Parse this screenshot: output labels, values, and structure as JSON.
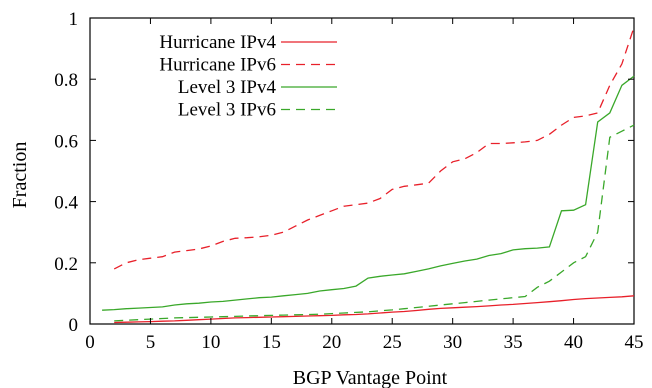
{
  "chart_data": {
    "type": "line",
    "xlabel": "BGP Vantage Point",
    "ylabel": "Fraction",
    "xlim": [
      0,
      45
    ],
    "ylim": [
      0,
      1
    ],
    "x_ticks": [
      0,
      5,
      10,
      15,
      20,
      25,
      30,
      35,
      40,
      45
    ],
    "y_ticks": [
      0,
      0.2,
      0.4,
      0.6,
      0.8,
      1
    ],
    "y_tick_labels": [
      "0",
      "0.2",
      "0.4",
      "0.6",
      "0.8",
      "1"
    ],
    "grid": false,
    "legend_position": "top-left",
    "series": [
      {
        "name": "Hurricane IPv4",
        "color": "#e8202a",
        "dash": "solid",
        "x": [
          2,
          3,
          4,
          5,
          6,
          7,
          8,
          9,
          10,
          11,
          12,
          13,
          14,
          15,
          16,
          17,
          18,
          19,
          20,
          21,
          22,
          23,
          24,
          25,
          26,
          27,
          28,
          29,
          30,
          31,
          32,
          33,
          34,
          35,
          36,
          37,
          38,
          39,
          40,
          41,
          42,
          43,
          44,
          45
        ],
        "values": [
          0.005,
          0.006,
          0.007,
          0.008,
          0.009,
          0.01,
          0.012,
          0.014,
          0.016,
          0.018,
          0.02,
          0.021,
          0.022,
          0.023,
          0.024,
          0.025,
          0.026,
          0.027,
          0.028,
          0.03,
          0.031,
          0.033,
          0.036,
          0.039,
          0.041,
          0.044,
          0.048,
          0.051,
          0.053,
          0.055,
          0.057,
          0.059,
          0.062,
          0.064,
          0.067,
          0.07,
          0.073,
          0.076,
          0.08,
          0.083,
          0.085,
          0.087,
          0.089,
          0.092
        ]
      },
      {
        "name": "Hurricane IPv6",
        "color": "#e8202a",
        "dash": "dashed",
        "x": [
          2,
          3,
          4,
          5,
          6,
          7,
          8,
          9,
          10,
          11,
          12,
          13,
          14,
          15,
          16,
          17,
          18,
          19,
          20,
          21,
          22,
          23,
          24,
          25,
          26,
          27,
          28,
          29,
          30,
          31,
          32,
          33,
          34,
          35,
          36,
          37,
          38,
          39,
          40,
          41,
          42,
          43,
          44,
          45
        ],
        "values": [
          0.18,
          0.2,
          0.21,
          0.215,
          0.22,
          0.235,
          0.24,
          0.245,
          0.255,
          0.27,
          0.28,
          0.282,
          0.285,
          0.29,
          0.3,
          0.32,
          0.34,
          0.355,
          0.37,
          0.385,
          0.39,
          0.395,
          0.41,
          0.44,
          0.45,
          0.455,
          0.46,
          0.5,
          0.53,
          0.54,
          0.56,
          0.59,
          0.59,
          0.592,
          0.595,
          0.6,
          0.62,
          0.65,
          0.675,
          0.68,
          0.69,
          0.78,
          0.85,
          0.97
        ]
      },
      {
        "name": "Level 3 IPv4",
        "color": "#3aa82a",
        "dash": "solid",
        "x": [
          1,
          2,
          3,
          4,
          5,
          6,
          7,
          8,
          9,
          10,
          11,
          12,
          13,
          14,
          15,
          16,
          17,
          18,
          19,
          20,
          21,
          22,
          23,
          24,
          25,
          26,
          27,
          28,
          29,
          30,
          31,
          32,
          33,
          34,
          35,
          36,
          37,
          38,
          39,
          40,
          41,
          42,
          43,
          44,
          45
        ],
        "values": [
          0.045,
          0.047,
          0.05,
          0.052,
          0.054,
          0.056,
          0.062,
          0.066,
          0.068,
          0.072,
          0.074,
          0.078,
          0.082,
          0.086,
          0.088,
          0.092,
          0.096,
          0.1,
          0.108,
          0.112,
          0.116,
          0.124,
          0.15,
          0.156,
          0.16,
          0.164,
          0.172,
          0.18,
          0.19,
          0.198,
          0.206,
          0.212,
          0.224,
          0.23,
          0.242,
          0.246,
          0.248,
          0.252,
          0.37,
          0.372,
          0.39,
          0.66,
          0.69,
          0.78,
          0.81
        ]
      },
      {
        "name": "Level 3 IPv6",
        "color": "#3aa82a",
        "dash": "dashed",
        "x": [
          2,
          3,
          4,
          5,
          6,
          7,
          8,
          9,
          10,
          11,
          12,
          13,
          14,
          15,
          16,
          17,
          18,
          19,
          20,
          21,
          22,
          23,
          24,
          25,
          26,
          27,
          28,
          29,
          30,
          31,
          32,
          33,
          34,
          35,
          36,
          37,
          38,
          39,
          40,
          41,
          42,
          43,
          44,
          45
        ],
        "values": [
          0.01,
          0.012,
          0.014,
          0.016,
          0.018,
          0.02,
          0.021,
          0.022,
          0.023,
          0.024,
          0.025,
          0.026,
          0.027,
          0.028,
          0.029,
          0.03,
          0.031,
          0.032,
          0.034,
          0.036,
          0.038,
          0.04,
          0.043,
          0.046,
          0.05,
          0.054,
          0.058,
          0.062,
          0.066,
          0.07,
          0.074,
          0.078,
          0.082,
          0.086,
          0.09,
          0.12,
          0.14,
          0.17,
          0.2,
          0.22,
          0.3,
          0.61,
          0.63,
          0.65
        ]
      }
    ]
  }
}
